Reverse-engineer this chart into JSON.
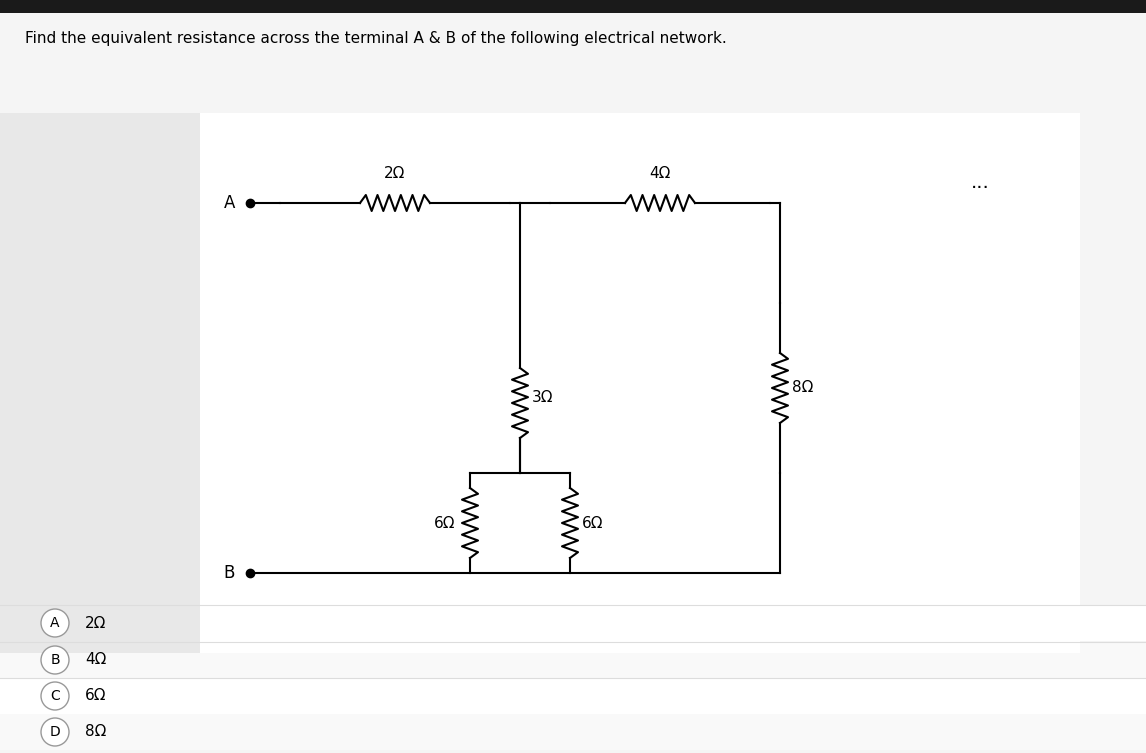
{
  "title": "Find the equivalent resistance across the terminal A & B of the following electrical network.",
  "bg_color": "#f0f0f0",
  "circuit_bg": "#ffffff",
  "options": [
    {
      "label": "A",
      "value": "2Ω"
    },
    {
      "label": "B",
      "value": "4Ω"
    },
    {
      "label": "C",
      "value": "6Ω"
    },
    {
      "label": "D",
      "value": "8Ω"
    }
  ],
  "dots": "...",
  "resistors": {
    "R1": {
      "value": "2Ω",
      "type": "horizontal"
    },
    "R2": {
      "value": "4Ω",
      "type": "horizontal"
    },
    "R3": {
      "value": "3Ω",
      "type": "vertical"
    },
    "R4": {
      "value": "6Ω",
      "type": "vertical"
    },
    "R5": {
      "value": "6Ω",
      "type": "vertical"
    },
    "R6": {
      "value": "8Ω",
      "type": "vertical"
    }
  }
}
